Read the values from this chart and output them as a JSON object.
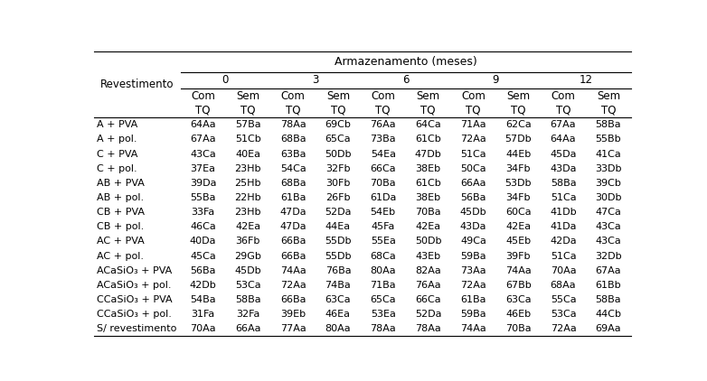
{
  "title": "Armazenamento (meses)",
  "col_header_level1": [
    "0",
    "3",
    "6",
    "9",
    "12"
  ],
  "col_header_level2": [
    "Com\nTQ",
    "Sem\nTQ",
    "Com\nTQ",
    "Sem\nTQ",
    "Com\nTQ",
    "Sem\nTQ",
    "Com\nTQ",
    "Sem\nTQ",
    "Com\nTQ",
    "Sem\nTQ"
  ],
  "row_header": "Revestimento",
  "rows": [
    [
      "A + PVA",
      "64Aa",
      "57Ba",
      "78Aa",
      "69Cb",
      "76Aa",
      "64Ca",
      "71Aa",
      "62Ca",
      "67Aa",
      "58Ba"
    ],
    [
      "A + pol.",
      "67Aa",
      "51Cb",
      "68Ba",
      "65Ca",
      "73Ba",
      "61Cb",
      "72Aa",
      "57Db",
      "64Aa",
      "55Bb"
    ],
    [
      "C + PVA",
      "43Ca",
      "40Ea",
      "63Ba",
      "50Db",
      "54Ea",
      "47Db",
      "51Ca",
      "44Eb",
      "45Da",
      "41Ca"
    ],
    [
      "C + pol.",
      "37Ea",
      "23Hb",
      "54Ca",
      "32Fb",
      "66Ca",
      "38Eb",
      "50Ca",
      "34Fb",
      "43Da",
      "33Db"
    ],
    [
      "AB + PVA",
      "39Da",
      "25Hb",
      "68Ba",
      "30Fb",
      "70Ba",
      "61Cb",
      "66Aa",
      "53Db",
      "58Ba",
      "39Cb"
    ],
    [
      "AB + pol.",
      "55Ba",
      "22Hb",
      "61Ba",
      "26Fb",
      "61Da",
      "38Eb",
      "56Ba",
      "34Fb",
      "51Ca",
      "30Db"
    ],
    [
      "CB + PVA",
      "33Fa",
      "23Hb",
      "47Da",
      "52Da",
      "54Eb",
      "70Ba",
      "45Db",
      "60Ca",
      "41Db",
      "47Ca"
    ],
    [
      "CB + pol.",
      "46Ca",
      "42Ea",
      "47Da",
      "44Ea",
      "45Fa",
      "42Ea",
      "43Da",
      "42Ea",
      "41Da",
      "43Ca"
    ],
    [
      "AC + PVA",
      "40Da",
      "36Fb",
      "66Ba",
      "55Db",
      "55Ea",
      "50Db",
      "49Ca",
      "45Eb",
      "42Da",
      "43Ca"
    ],
    [
      "AC + pol.",
      "45Ca",
      "29Gb",
      "66Ba",
      "55Db",
      "68Ca",
      "43Eb",
      "59Ba",
      "39Fb",
      "51Ca",
      "32Db"
    ],
    [
      "ACaSiO₃ + PVA",
      "56Ba",
      "45Db",
      "74Aa",
      "76Ba",
      "80Aa",
      "82Aa",
      "73Aa",
      "74Aa",
      "70Aa",
      "67Aa"
    ],
    [
      "ACaSiO₃ + pol.",
      "42Db",
      "53Ca",
      "72Aa",
      "74Ba",
      "71Ba",
      "76Aa",
      "72Aa",
      "67Bb",
      "68Aa",
      "61Bb"
    ],
    [
      "CCaSiO₃ + PVA",
      "54Ba",
      "58Ba",
      "66Ba",
      "63Ca",
      "65Ca",
      "66Ca",
      "61Ba",
      "63Ca",
      "55Ca",
      "58Ba"
    ],
    [
      "CCaSiO₃ + pol.",
      "31Fa",
      "32Fa",
      "39Eb",
      "46Ea",
      "53Ea",
      "52Da",
      "59Ba",
      "46Eb",
      "53Ca",
      "44Cb"
    ],
    [
      "S/ revestimento",
      "70Aa",
      "66Aa",
      "77Aa",
      "80Aa",
      "78Aa",
      "78Aa",
      "74Aa",
      "70Ba",
      "72Aa",
      "69Aa"
    ]
  ],
  "background_color": "#ffffff",
  "text_color": "#000000",
  "font_size_title": 9,
  "font_size_header": 8.5,
  "font_size_data": 8.0,
  "font_size_row_header": 8.0
}
